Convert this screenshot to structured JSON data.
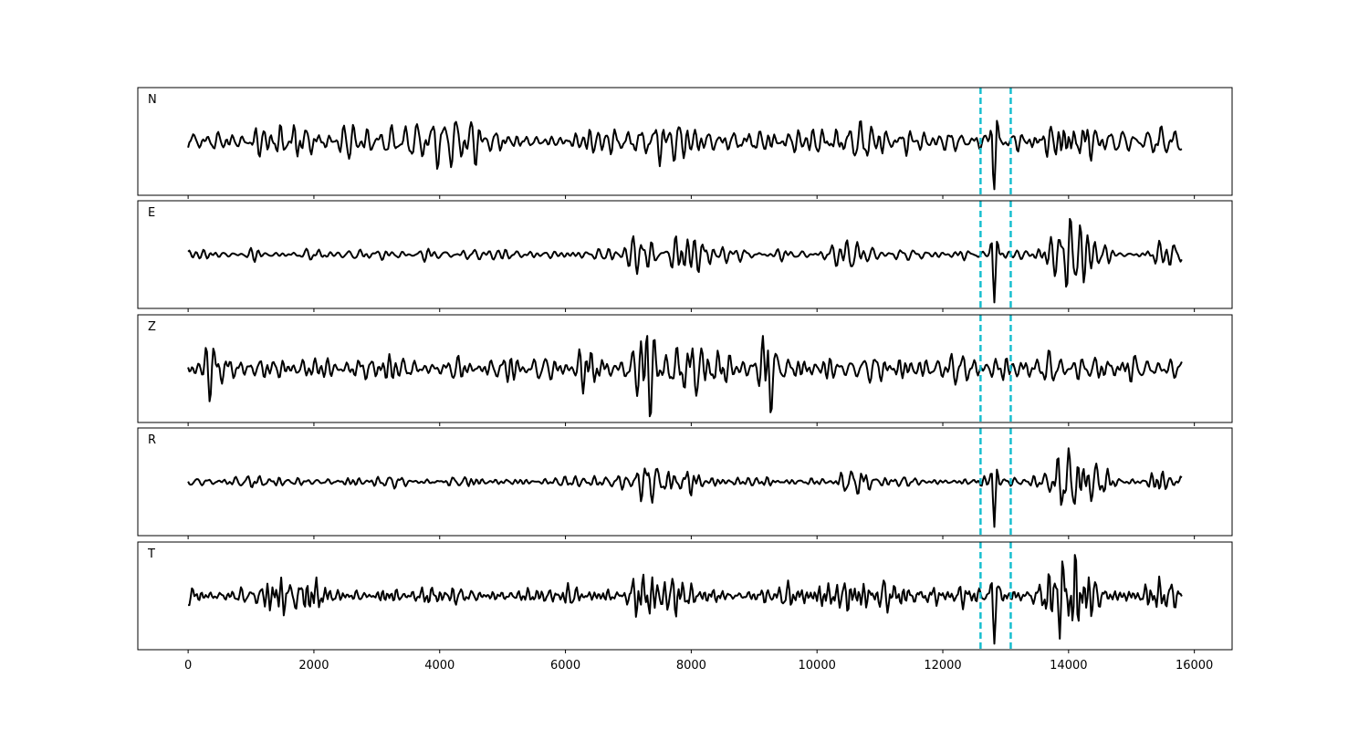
{
  "chart_data": {
    "type": "line",
    "panels": [
      "N",
      "E",
      "Z",
      "R",
      "T"
    ],
    "xlim": [
      -800,
      16600
    ],
    "x_ticks": [
      0,
      2000,
      4000,
      6000,
      8000,
      10000,
      12000,
      14000,
      16000
    ],
    "x_tick_labels": [
      "0",
      "2000",
      "4000",
      "6000",
      "8000",
      "10000",
      "12000",
      "14000",
      "16000"
    ],
    "ylim": [
      -1.05,
      1.05
    ],
    "x_range": [
      0,
      15800
    ],
    "sample_step": 20,
    "marker_lines": [
      12600,
      13080
    ],
    "colors": {
      "trace": "#000000",
      "marker": "#17becf",
      "frame": "#000000"
    },
    "grid": false,
    "series": [
      {
        "name": "N",
        "noise_amp": 0.13,
        "bursts": [
          {
            "center": 1700,
            "width": 400,
            "amp": 0.18
          },
          {
            "center": 3900,
            "width": 700,
            "amp": 0.12
          },
          {
            "center": 7500,
            "width": 500,
            "amp": 0.15
          },
          {
            "center": 10400,
            "width": 900,
            "amp": 0.1
          },
          {
            "center": 14000,
            "width": 350,
            "amp": 0.32
          }
        ],
        "events": [
          {
            "center": 12820,
            "width": 45,
            "amp": 1.0,
            "period": 120
          }
        ]
      },
      {
        "name": "E",
        "noise_amp": 0.05,
        "bursts": [
          {
            "center": 7400,
            "width": 600,
            "amp": 0.12
          },
          {
            "center": 8100,
            "width": 400,
            "amp": 0.1
          },
          {
            "center": 10500,
            "width": 300,
            "amp": 0.07
          },
          {
            "center": 14050,
            "width": 350,
            "amp": 0.3
          },
          {
            "center": 15500,
            "width": 250,
            "amp": 0.09
          }
        ],
        "events": [
          {
            "center": 12820,
            "width": 45,
            "amp": 1.0,
            "period": 120
          }
        ]
      },
      {
        "name": "Z",
        "noise_amp": 0.16,
        "bursts": [
          {
            "center": 250,
            "width": 200,
            "amp": 0.18
          },
          {
            "center": 7320,
            "width": 120,
            "amp": 0.75
          },
          {
            "center": 8100,
            "width": 400,
            "amp": 0.25
          },
          {
            "center": 9230,
            "width": 90,
            "amp": 0.42
          },
          {
            "center": 6400,
            "width": 300,
            "amp": 0.12
          }
        ],
        "events": []
      },
      {
        "name": "R",
        "noise_amp": 0.06,
        "bursts": [
          {
            "center": 7600,
            "width": 700,
            "amp": 0.12
          },
          {
            "center": 10500,
            "width": 300,
            "amp": 0.08
          },
          {
            "center": 14100,
            "width": 400,
            "amp": 0.32
          },
          {
            "center": 15500,
            "width": 300,
            "amp": 0.1
          }
        ],
        "events": [
          {
            "center": 12820,
            "width": 45,
            "amp": 1.0,
            "period": 120
          }
        ]
      },
      {
        "name": "T",
        "noise_amp": 0.09,
        "bursts": [
          {
            "center": 1700,
            "width": 500,
            "amp": 0.12
          },
          {
            "center": 7400,
            "width": 500,
            "amp": 0.14
          },
          {
            "center": 10500,
            "width": 800,
            "amp": 0.1
          },
          {
            "center": 14000,
            "width": 350,
            "amp": 0.35
          },
          {
            "center": 15300,
            "width": 300,
            "amp": 0.1
          }
        ],
        "events": [
          {
            "center": 12820,
            "width": 45,
            "amp": 1.0,
            "period": 120
          }
        ]
      }
    ]
  }
}
